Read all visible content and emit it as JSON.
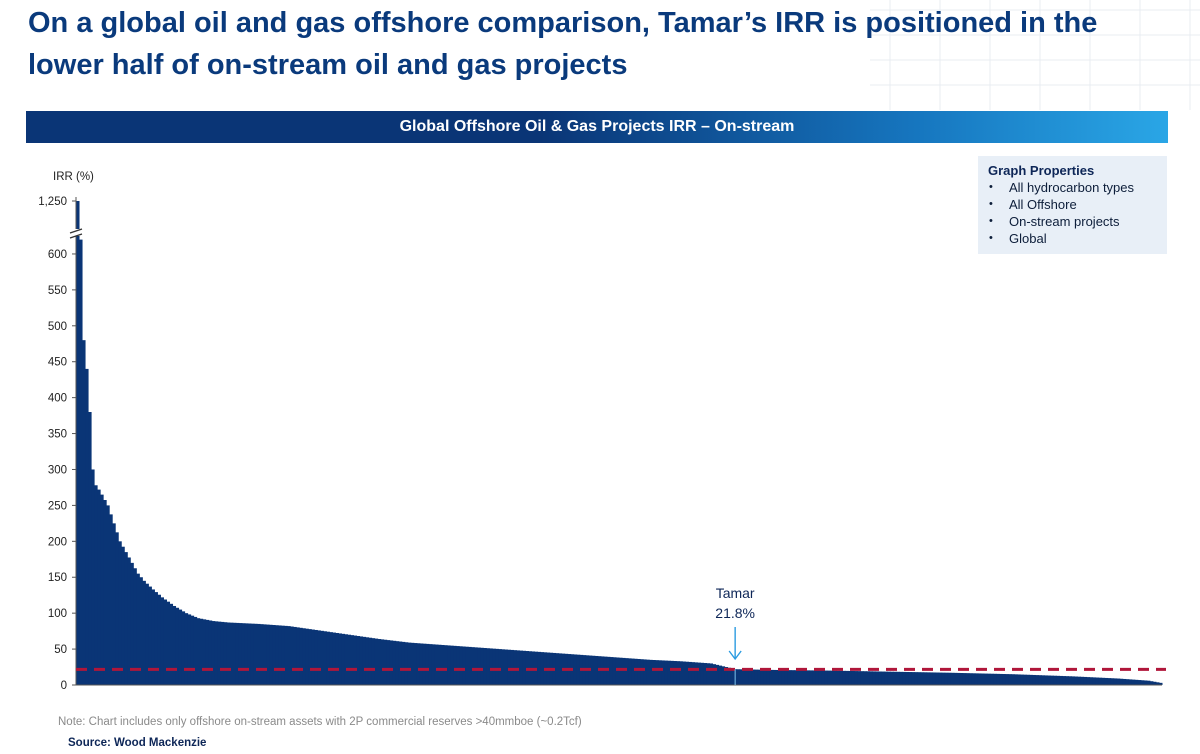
{
  "title": "On a global oil and gas offshore comparison, Tamar’s IRR is positioned in the lower half of on-stream oil and gas projects",
  "banner": "Global Offshore Oil & Gas Projects IRR – On-stream",
  "properties": {
    "title": "Graph Properties",
    "items": [
      "All hydrocarbon types",
      "All Offshore",
      "On-stream  projects",
      "Global"
    ]
  },
  "note": "Note: Chart includes only offshore on-stream assets with 2P commercial reserves >40mmboe (~0.2Tcf)",
  "source": "Source: Wood Mackenzie",
  "colors": {
    "bar": "#0a3576",
    "reference_line": "#b0163a",
    "callout": "#2b9be0",
    "title": "#0a3a7c"
  },
  "chart_data": {
    "type": "bar",
    "title": "Global Offshore Oil & Gas Projects IRR – On-stream",
    "ylabel": "IRR (%)",
    "xlabel": "",
    "ylim": [
      0,
      625
    ],
    "axis_break": {
      "after": 625,
      "top_label": "1,250",
      "top_value": 1250
    },
    "yticks": [
      0,
      50,
      100,
      150,
      200,
      250,
      300,
      350,
      400,
      450,
      500,
      550,
      600
    ],
    "bar_count": 360,
    "profile": [
      [
        0,
        1250
      ],
      [
        1,
        620
      ],
      [
        2,
        480
      ],
      [
        3,
        440
      ],
      [
        4,
        380
      ],
      [
        5,
        300
      ],
      [
        6,
        278
      ],
      [
        7,
        272
      ],
      [
        8,
        265
      ],
      [
        10,
        250
      ],
      [
        12,
        225
      ],
      [
        14,
        200
      ],
      [
        16,
        185
      ],
      [
        18,
        170
      ],
      [
        20,
        155
      ],
      [
        22,
        145
      ],
      [
        25,
        133
      ],
      [
        28,
        122
      ],
      [
        32,
        110
      ],
      [
        36,
        100
      ],
      [
        40,
        93
      ],
      [
        45,
        89
      ],
      [
        50,
        87
      ],
      [
        60,
        85
      ],
      [
        70,
        82
      ],
      [
        80,
        76
      ],
      [
        90,
        70
      ],
      [
        100,
        64
      ],
      [
        110,
        59
      ],
      [
        120,
        56
      ],
      [
        130,
        53
      ],
      [
        140,
        50
      ],
      [
        150,
        47
      ],
      [
        160,
        44
      ],
      [
        170,
        41
      ],
      [
        180,
        38
      ],
      [
        190,
        35
      ],
      [
        200,
        33
      ],
      [
        210,
        30
      ],
      [
        218,
        22
      ],
      [
        230,
        21
      ],
      [
        250,
        20
      ],
      [
        270,
        18.5
      ],
      [
        290,
        17
      ],
      [
        310,
        15
      ],
      [
        330,
        12
      ],
      [
        345,
        9
      ],
      [
        355,
        6
      ],
      [
        359,
        3
      ]
    ],
    "reference": {
      "label": "Tamar",
      "value_label": "21.8%",
      "value": 21.8,
      "index": 218
    }
  }
}
